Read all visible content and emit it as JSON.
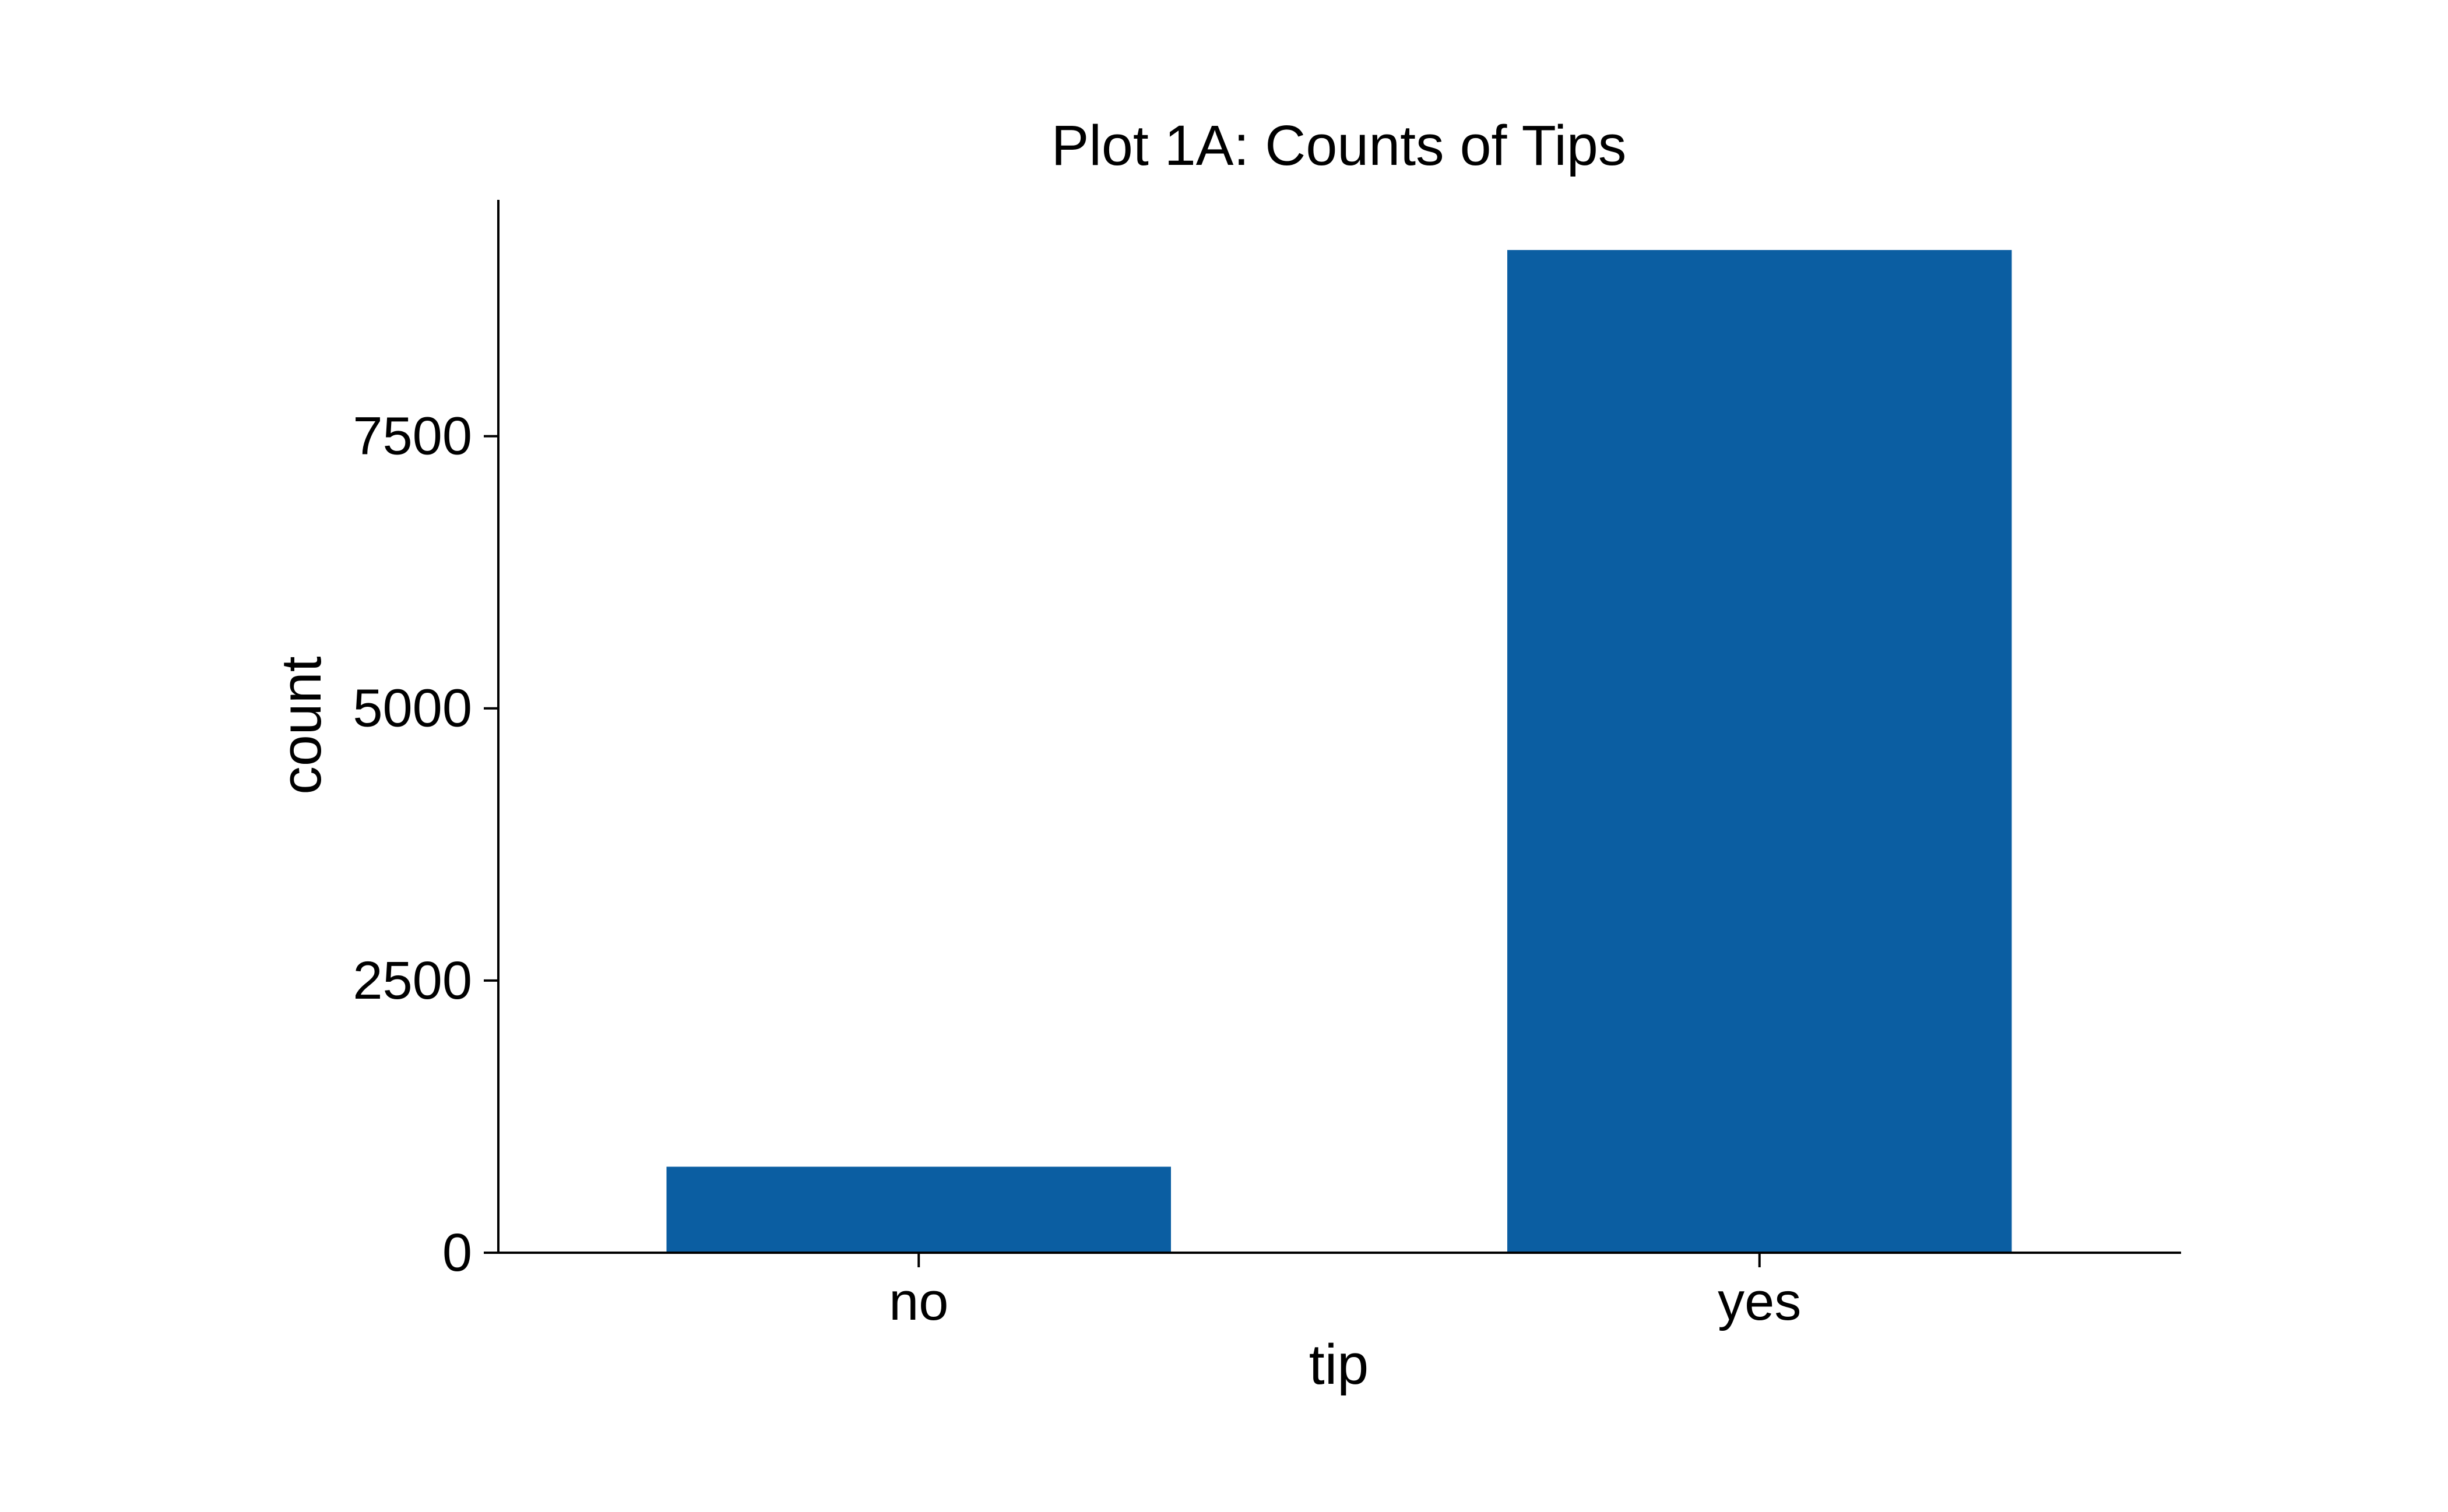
{
  "chart_data": {
    "type": "bar",
    "title": "Plot 1A: Counts of Tips",
    "xlabel": "tip",
    "ylabel": "count",
    "categories": [
      "no",
      "yes"
    ],
    "values": [
      790,
      9210
    ],
    "ylim": [
      0,
      9660
    ],
    "yticks": [
      0,
      2500,
      5000,
      7500
    ],
    "ytick_labels": [
      "0",
      "2500",
      "5000",
      "7500"
    ],
    "grid": false,
    "legend": "none",
    "bar_color": "#0b5ea2",
    "axis_color": "#000000"
  }
}
